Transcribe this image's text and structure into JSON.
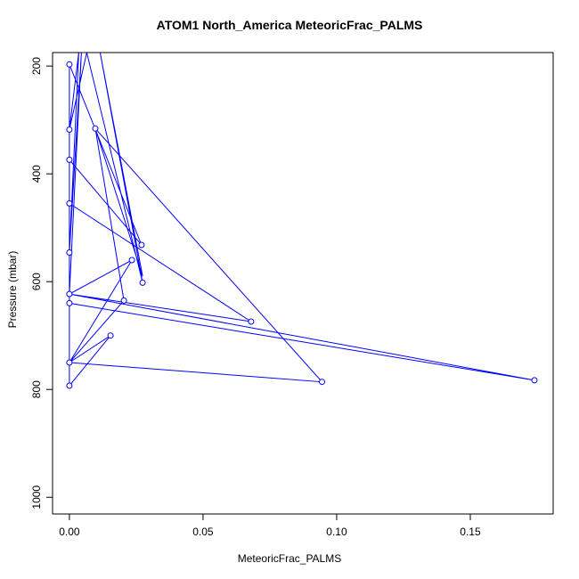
{
  "chart_data": {
    "type": "line",
    "title": "ATOM1 North_America MeteoricFrac_PALMS",
    "xlabel": "MeteoricFrac_PALMS",
    "ylabel": "Pressure (mbar)",
    "xlim": [
      -0.0063,
      0.181
    ],
    "ylim": [
      1031,
      175
    ],
    "y_reversed": true,
    "x_ticks": [
      0.0,
      0.05,
      0.1,
      0.15
    ],
    "x_tick_labels": [
      "0.00",
      "0.05",
      "0.10",
      "0.15"
    ],
    "y_ticks": [
      200,
      400,
      600,
      800,
      1000
    ],
    "y_tick_labels": [
      "200",
      "400",
      "600",
      "800",
      "1000"
    ],
    "series_color": "#0000ff",
    "points": [
      {
        "x": 0.0,
        "y": 197
      },
      {
        "x": 0.0,
        "y": 318
      },
      {
        "x": 0.0,
        "y": 374
      },
      {
        "x": 0.0,
        "y": 455
      },
      {
        "x": 0.0,
        "y": 546
      },
      {
        "x": 0.0,
        "y": 623
      },
      {
        "x": 0.0,
        "y": 640
      },
      {
        "x": 0.0,
        "y": 750
      },
      {
        "x": 0.0,
        "y": 793
      },
      {
        "x": 0.0097,
        "y": 316
      },
      {
        "x": 0.0204,
        "y": 635
      },
      {
        "x": 0.0154,
        "y": 700
      },
      {
        "x": 0.0234,
        "y": 560
      },
      {
        "x": 0.027,
        "y": 532
      },
      {
        "x": 0.0274,
        "y": 602
      },
      {
        "x": 0.068,
        "y": 674
      },
      {
        "x": 0.0945,
        "y": 786
      },
      {
        "x": 0.174,
        "y": 783
      }
    ],
    "path": [
      {
        "x": 0.0,
        "y": 793
      },
      {
        "x": 0.0,
        "y": 455
      },
      {
        "x": 0.0,
        "y": 318
      },
      {
        "x": 0.0035,
        "y": 175
      },
      {
        "x": 0.0,
        "y": 546
      },
      {
        "x": 0.0045,
        "y": 175
      },
      {
        "x": 0.0,
        "y": 623
      },
      {
        "x": 0.0234,
        "y": 560
      },
      {
        "x": 0.0,
        "y": 750
      },
      {
        "x": 0.0154,
        "y": 700
      },
      {
        "x": 0.0,
        "y": 793
      },
      {
        "x": 0.0,
        "y": 640
      },
      {
        "x": 0.174,
        "y": 783
      },
      {
        "x": 0.0,
        "y": 623
      },
      {
        "x": 0.068,
        "y": 674
      },
      {
        "x": 0.0,
        "y": 455
      },
      {
        "x": 0.0,
        "y": 374
      },
      {
        "x": 0.027,
        "y": 532
      },
      {
        "x": 0.0,
        "y": 197
      },
      {
        "x": 0.0,
        "y": 318
      },
      {
        "x": 0.0065,
        "y": 175
      },
      {
        "x": 0.0274,
        "y": 602
      },
      {
        "x": 0.0115,
        "y": 175
      },
      {
        "x": 0.0274,
        "y": 590
      },
      {
        "x": 0.0097,
        "y": 316
      },
      {
        "x": 0.0945,
        "y": 786
      },
      {
        "x": 0.0,
        "y": 750
      },
      {
        "x": 0.0204,
        "y": 635
      },
      {
        "x": 0.0097,
        "y": 316
      }
    ]
  }
}
